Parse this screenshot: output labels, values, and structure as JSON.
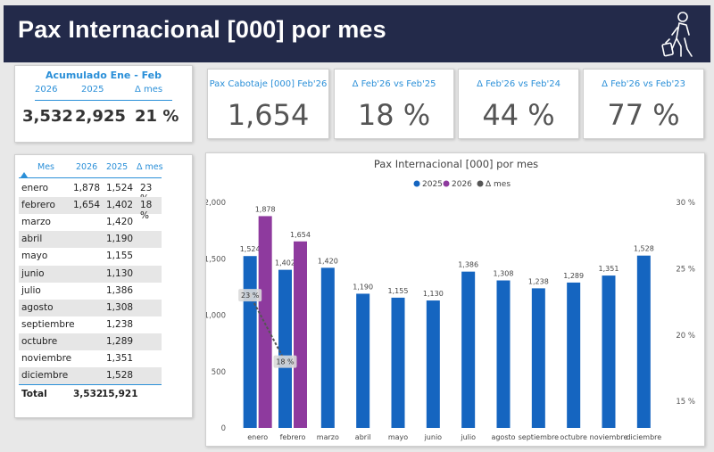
{
  "header": {
    "title": "Pax Internacional [000] por mes",
    "logo_icon": "traveler-luggage-icon"
  },
  "acumulado": {
    "title": "Acumulado Ene - Feb",
    "col_2026": "2026",
    "col_2025": "2025",
    "col_delta": "Δ mes",
    "val_2026": "3,532",
    "val_2025": "2,925",
    "val_delta": "21 %"
  },
  "kpis": [
    {
      "label": "Pax Cabotaje [000] Feb'26",
      "value": "1,654"
    },
    {
      "label": "Δ Feb'26 vs Feb'25",
      "value": "18 %"
    },
    {
      "label": "Δ Feb'26 vs Feb'24",
      "value": "44 %"
    },
    {
      "label": "Δ Feb'26 vs Feb'23",
      "value": "77 %"
    }
  ],
  "table": {
    "headers": {
      "mes": "Mes",
      "y2026": "2026",
      "y2025": "2025",
      "delta": "Δ mes"
    },
    "sort_icon": "sort-ascending-icon",
    "rows": [
      {
        "mes": "enero",
        "y2026": "1,878",
        "y2025": "1,524",
        "delta": "23 %"
      },
      {
        "mes": "febrero",
        "y2026": "1,654",
        "y2025": "1,402",
        "delta": "18 %"
      },
      {
        "mes": "marzo",
        "y2026": "",
        "y2025": "1,420",
        "delta": ""
      },
      {
        "mes": "abril",
        "y2026": "",
        "y2025": "1,190",
        "delta": ""
      },
      {
        "mes": "mayo",
        "y2026": "",
        "y2025": "1,155",
        "delta": ""
      },
      {
        "mes": "junio",
        "y2026": "",
        "y2025": "1,130",
        "delta": ""
      },
      {
        "mes": "julio",
        "y2026": "",
        "y2025": "1,386",
        "delta": ""
      },
      {
        "mes": "agosto",
        "y2026": "",
        "y2025": "1,308",
        "delta": ""
      },
      {
        "mes": "septiembre",
        "y2026": "",
        "y2025": "1,238",
        "delta": ""
      },
      {
        "mes": "octubre",
        "y2026": "",
        "y2025": "1,289",
        "delta": ""
      },
      {
        "mes": "noviembre",
        "y2026": "",
        "y2025": "1,351",
        "delta": ""
      },
      {
        "mes": "diciembre",
        "y2026": "",
        "y2025": "1,528",
        "delta": ""
      }
    ],
    "total": {
      "label": "Total",
      "y2026": "3,532",
      "y2025": "15,921"
    }
  },
  "colors": {
    "s2025": "#1565c0",
    "s2026": "#8e3a9e",
    "delta": "#555555",
    "accent": "#2a8fd8",
    "header_bg": "#232a4a"
  },
  "chart_data": {
    "type": "bar",
    "title": "Pax Internacional [000] por mes",
    "categories": [
      "enero",
      "febrero",
      "marzo",
      "abril",
      "mayo",
      "junio",
      "julio",
      "agosto",
      "septiembre",
      "octubre",
      "noviembre",
      "diciembre"
    ],
    "series": [
      {
        "name": "2025",
        "values": [
          1524,
          1402,
          1420,
          1190,
          1155,
          1130,
          1386,
          1308,
          1238,
          1289,
          1351,
          1528
        ]
      },
      {
        "name": "2026",
        "values": [
          1878,
          1654,
          null,
          null,
          null,
          null,
          null,
          null,
          null,
          null,
          null,
          null
        ]
      }
    ],
    "line_series": {
      "name": "Δ mes",
      "values": [
        0.23,
        0.18,
        null,
        null,
        null,
        null,
        null,
        null,
        null,
        null,
        null,
        null
      ],
      "labels": [
        "23 %",
        "18 %"
      ]
    },
    "value_labels_2025": [
      "1,524",
      "1,402",
      "1,420",
      "1,190",
      "1,155",
      "1,130",
      "1,386",
      "1,308",
      "1,238",
      "1,289",
      "1,351",
      "1,528"
    ],
    "value_labels_2026": [
      "1,878",
      "1,654"
    ],
    "y_left": {
      "ticks": [
        0,
        500,
        1000,
        1500,
        2000
      ],
      "tick_labels": [
        "0",
        "500",
        "1,000",
        "1,500",
        "2,000"
      ],
      "ylim": [
        0,
        2000
      ]
    },
    "y_right": {
      "ticks": [
        0.15,
        0.2,
        0.25,
        0.3
      ],
      "tick_labels": [
        "15 %",
        "20 %",
        "25 %",
        "30 %"
      ],
      "ylim": [
        0.13,
        0.3
      ]
    },
    "legend": [
      "2025",
      "2026",
      "Δ mes"
    ],
    "legend_position": "top-center"
  }
}
